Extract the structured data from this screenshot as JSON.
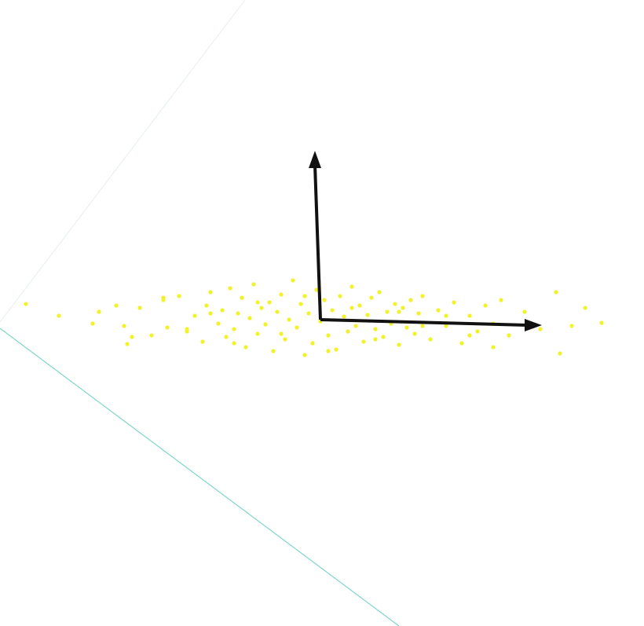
{
  "chart_data": {
    "type": "scatter",
    "xlim": [
      -408,
      412
    ],
    "ylim": [
      -390,
      407
    ],
    "series": [
      {
        "color": "#f2f22a",
        "x": [
          -375,
          -333,
          -290,
          -282,
          -250,
          -246,
          -230,
          -215,
          -200,
          -195,
          -180,
          -170,
          -160,
          -150,
          -145,
          -140,
          -130,
          -125,
          -120,
          -115,
          -110,
          -105,
          -100,
          -95,
          -90,
          -85,
          -80,
          -75,
          -70,
          -65,
          -60,
          -55,
          -50,
          -45,
          -40,
          -35,
          -30,
          -25,
          -20,
          -15,
          -10,
          -5,
          0,
          5,
          10,
          15,
          20,
          25,
          30,
          35,
          40,
          45,
          50,
          55,
          60,
          65,
          70,
          75,
          80,
          85,
          90,
          95,
          100,
          105,
          110,
          115,
          120,
          125,
          130,
          140,
          150,
          160,
          170,
          180,
          190,
          200,
          210,
          220,
          230,
          240,
          260,
          280,
          300,
          305,
          320,
          337,
          358,
          -260,
          -240,
          -200,
          -170,
          -140,
          -110,
          -80,
          -50,
          -20,
          10,
          40,
          70,
          100,
          130,
          160,
          190,
          220
        ],
        "values": [
          20,
          5,
          -5,
          10,
          -8,
          -31,
          15,
          -20,
          25,
          -10,
          30,
          -15,
          5,
          -28,
          18,
          35,
          -5,
          12,
          -22,
          40,
          -12,
          8,
          28,
          -35,
          2,
          45,
          -18,
          15,
          -6,
          22,
          -40,
          10,
          32,
          -25,
          0,
          50,
          -10,
          20,
          -45,
          8,
          -30,
          38,
          -2,
          25,
          -20,
          12,
          -38,
          30,
          4,
          -15,
          42,
          -8,
          18,
          -28,
          6,
          28,
          -12,
          35,
          -22,
          10,
          -5,
          20,
          -32,
          15,
          -10,
          25,
          -18,
          8,
          30,
          -25,
          12,
          -8,
          22,
          -30,
          5,
          -15,
          18,
          -5,
          25,
          -20,
          10,
          -12,
          35,
          -43,
          -8,
          15,
          -4,
          18,
          -22,
          28,
          -12,
          8,
          -30,
          22,
          -18,
          30,
          -40,
          15,
          -25,
          10,
          -8,
          5,
          -20,
          -35
        ]
      }
    ]
  }
}
